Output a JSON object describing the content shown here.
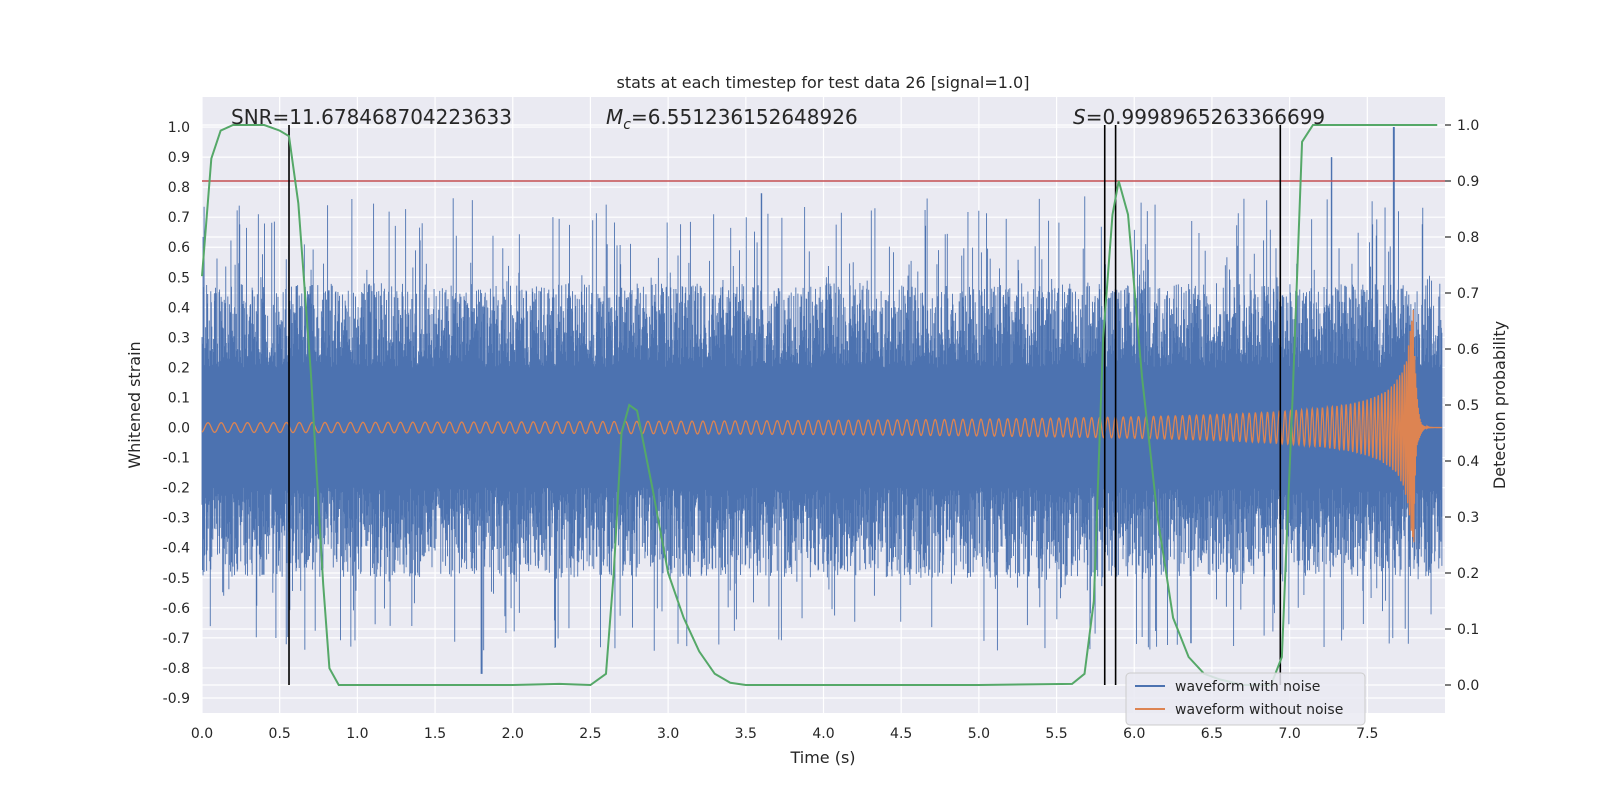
{
  "chart_data": {
    "type": "line",
    "title": "stats at each timestep for test data 26 [signal=1.0]",
    "xlabel": "Time (s)",
    "ylabel": "Whitened strain",
    "y2label": "Detection probability",
    "xlim": [
      0.0,
      8.0
    ],
    "ylim": [
      -0.95,
      1.1
    ],
    "y2lim": [
      -0.05,
      1.05
    ],
    "x_ticks": [
      "0.0",
      "0.5",
      "1.0",
      "1.5",
      "2.0",
      "2.5",
      "3.0",
      "3.5",
      "4.0",
      "4.5",
      "5.0",
      "5.5",
      "6.0",
      "6.5",
      "7.0",
      "7.5"
    ],
    "y_ticks": [
      "1.0",
      "0.9",
      "0.8",
      "0.7",
      "0.6",
      "0.5",
      "0.4",
      "0.3",
      "0.2",
      "0.1",
      "0.0",
      "-0.1",
      "-0.2",
      "-0.3",
      "-0.4",
      "-0.5",
      "-0.6",
      "-0.7",
      "-0.8",
      "-0.9"
    ],
    "y2_ticks": [
      "1.0",
      "0.9",
      "0.8",
      "0.7",
      "0.6",
      "0.5",
      "0.4",
      "0.3",
      "0.2",
      "0.1",
      "0.0"
    ],
    "annotations": {
      "snr": "SNR=11.678468704223633",
      "mc_symbol": "M",
      "mc_sub": "c",
      "mc_value": "=6.551236152648926",
      "s_symbol": "S",
      "s_value": "=0.9998965263366699"
    },
    "threshold": {
      "axis": "y2",
      "value": 0.9,
      "color": "#c44e52"
    },
    "vlines": [
      0.56,
      5.81,
      5.88,
      6.94
    ],
    "series": [
      {
        "name": "waveform with noise",
        "axis": "y",
        "color": "#4c72b0",
        "note": "dense noise band roughly -0.75..0.65 with spikes up to 1.0 near 7.67 s"
      },
      {
        "name": "waveform without noise",
        "axis": "y",
        "color": "#dd8452",
        "note": "chirp with growing amplitude, peaking near 7.8 s then ringing down to 0"
      },
      {
        "name": "detection probability",
        "axis": "y2",
        "color": "#55a868",
        "x": [
          0.0,
          0.06,
          0.12,
          0.2,
          0.3,
          0.4,
          0.5,
          0.56,
          0.62,
          0.7,
          0.78,
          0.82,
          0.88,
          1.0,
          1.5,
          2.0,
          2.3,
          2.5,
          2.6,
          2.65,
          2.7,
          2.75,
          2.8,
          2.85,
          2.9,
          3.0,
          3.1,
          3.2,
          3.3,
          3.4,
          3.5,
          4.0,
          5.0,
          5.6,
          5.68,
          5.74,
          5.8,
          5.86,
          5.9,
          5.96,
          6.05,
          6.15,
          6.25,
          6.35,
          6.45,
          6.55,
          6.7,
          6.88,
          6.95,
          7.02,
          7.08,
          7.15,
          7.5,
          7.95
        ],
        "y": [
          0.73,
          0.94,
          0.99,
          1.0,
          1.0,
          1.0,
          0.99,
          0.98,
          0.86,
          0.56,
          0.18,
          0.03,
          0.0,
          0.0,
          0.0,
          0.0,
          0.002,
          0.0,
          0.02,
          0.2,
          0.45,
          0.5,
          0.49,
          0.42,
          0.35,
          0.2,
          0.12,
          0.06,
          0.02,
          0.004,
          0.0,
          0.0,
          0.0,
          0.002,
          0.02,
          0.15,
          0.62,
          0.84,
          0.9,
          0.84,
          0.55,
          0.3,
          0.12,
          0.05,
          0.02,
          0.01,
          0.0,
          0.0,
          0.05,
          0.52,
          0.97,
          1.0,
          1.0,
          1.0
        ]
      }
    ],
    "legend": {
      "position": "lower-right",
      "entries": [
        {
          "label": "waveform with noise",
          "color": "#4c72b0"
        },
        {
          "label": "waveform without noise",
          "color": "#dd8452"
        }
      ]
    }
  }
}
